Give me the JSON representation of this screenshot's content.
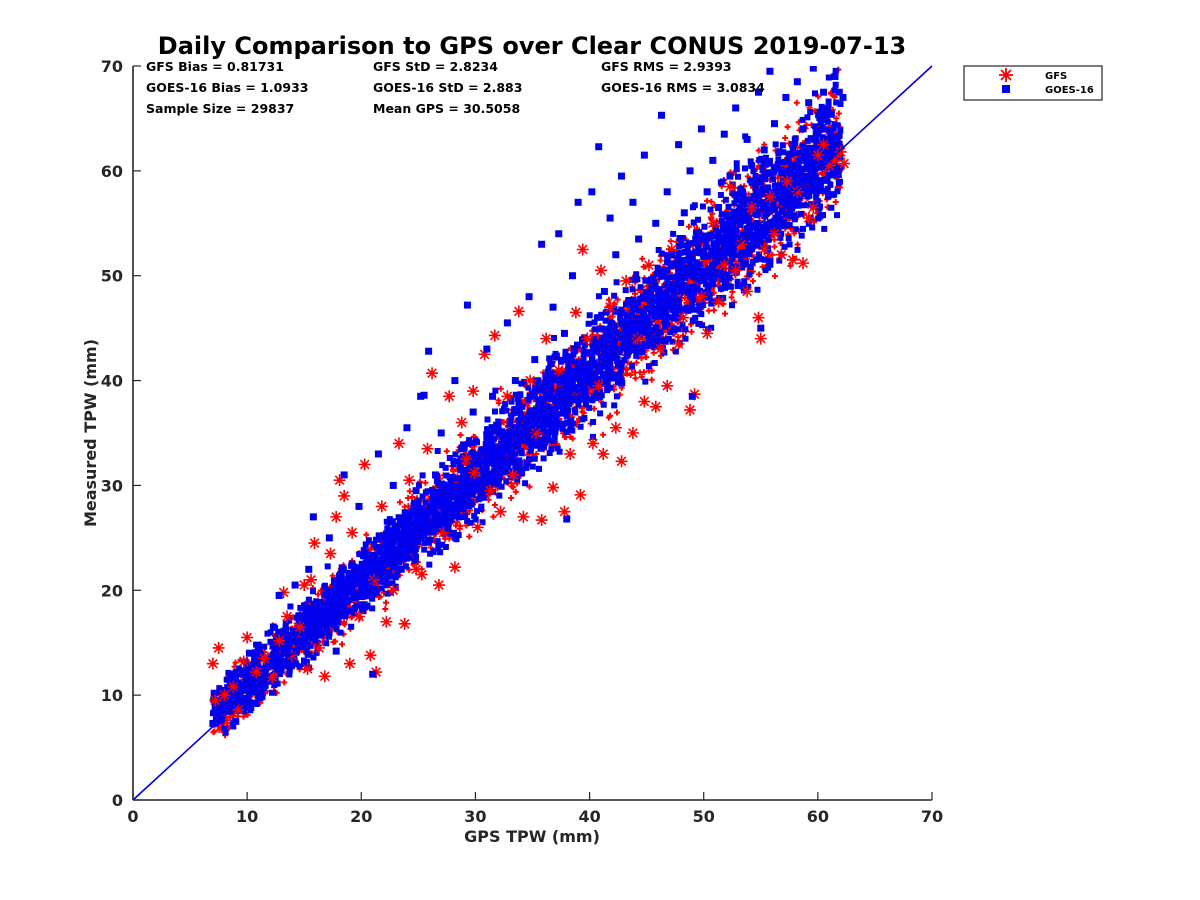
{
  "chart_data": {
    "type": "scatter",
    "title": "Daily Comparison to GPS over Clear CONUS 2019-07-13",
    "xlabel": "GPS TPW (mm)",
    "ylabel": "Measured TPW (mm)",
    "xlim": [
      0,
      70
    ],
    "ylim": [
      0,
      70
    ],
    "xticks": [
      "0",
      "10",
      "20",
      "30",
      "40",
      "50",
      "60",
      "70"
    ],
    "yticks": [
      "0",
      "10",
      "20",
      "30",
      "40",
      "50",
      "60",
      "70"
    ],
    "grid": false,
    "legend_position": "top-right outside",
    "reference_line": {
      "name": "1:1 line",
      "from": [
        0,
        0
      ],
      "to": [
        70,
        70
      ],
      "color": "#0000dd"
    },
    "stats": [
      [
        "GFS Bias = 0.81731",
        "GFS StD = 2.8234",
        "GFS RMS = 2.9393"
      ],
      [
        "GOES-16 Bias = 1.0933",
        "GOES-16 StD = 2.883",
        "GOES-16 RMS = 3.0834"
      ],
      [
        "Sample Size = 29837",
        "Mean GPS = 30.5058"
      ]
    ],
    "series": [
      {
        "name": "GFS",
        "marker": "asterisk",
        "color": "#ff0000",
        "bias": 0.81731,
        "std": 2.8234,
        "rms": 2.9393,
        "points": [
          [
            7.2,
            9.5
          ],
          [
            7.0,
            13.0
          ],
          [
            7.5,
            14.5
          ],
          [
            8.0,
            10.0
          ],
          [
            8.8,
            10.8
          ],
          [
            9.2,
            8.6
          ],
          [
            9.7,
            13.2
          ],
          [
            10.0,
            15.5
          ],
          [
            10.8,
            12.2
          ],
          [
            11.5,
            13.5
          ],
          [
            12.2,
            11.7
          ],
          [
            12.8,
            15.2
          ],
          [
            13.2,
            19.8
          ],
          [
            13.5,
            17.5
          ],
          [
            13.9,
            13.8
          ],
          [
            14.6,
            16.5
          ],
          [
            15.0,
            20.5
          ],
          [
            15.3,
            12.5
          ],
          [
            15.6,
            21.0
          ],
          [
            15.9,
            24.5
          ],
          [
            16.3,
            14.5
          ],
          [
            16.8,
            11.8
          ],
          [
            17.3,
            23.5
          ],
          [
            17.8,
            27.0
          ],
          [
            18.1,
            30.5
          ],
          [
            18.5,
            29.0
          ],
          [
            19.0,
            13.0
          ],
          [
            19.2,
            25.5
          ],
          [
            19.8,
            17.5
          ],
          [
            20.3,
            32.0
          ],
          [
            20.8,
            13.8
          ],
          [
            21.1,
            21.0
          ],
          [
            21.3,
            12.2
          ],
          [
            21.8,
            28.0
          ],
          [
            22.2,
            17.0
          ],
          [
            22.8,
            20.0
          ],
          [
            23.3,
            34.0
          ],
          [
            23.8,
            16.8
          ],
          [
            24.2,
            30.5
          ],
          [
            24.8,
            22.0
          ],
          [
            25.3,
            21.5
          ],
          [
            25.8,
            33.5
          ],
          [
            26.2,
            40.7
          ],
          [
            26.8,
            20.5
          ],
          [
            27.2,
            25.5
          ],
          [
            27.7,
            38.5
          ],
          [
            28.2,
            22.2
          ],
          [
            28.8,
            36.0
          ],
          [
            29.2,
            32.5
          ],
          [
            29.8,
            39.0
          ],
          [
            30.2,
            26.0
          ],
          [
            30.8,
            42.5
          ],
          [
            31.3,
            29.5
          ],
          [
            31.7,
            44.3
          ],
          [
            32.2,
            27.5
          ],
          [
            32.8,
            38.5
          ],
          [
            33.3,
            31.0
          ],
          [
            33.8,
            46.6
          ],
          [
            34.2,
            27.0
          ],
          [
            34.8,
            40.0
          ],
          [
            35.3,
            35.0
          ],
          [
            35.8,
            26.7
          ],
          [
            36.2,
            44.0
          ],
          [
            36.8,
            29.8
          ],
          [
            37.3,
            41.0
          ],
          [
            37.8,
            27.5
          ],
          [
            38.3,
            33.0
          ],
          [
            38.8,
            46.5
          ],
          [
            39.2,
            29.1
          ],
          [
            39.8,
            44.0
          ],
          [
            40.3,
            34.0
          ],
          [
            40.8,
            39.5
          ],
          [
            41.2,
            33.0
          ],
          [
            41.8,
            47.0
          ],
          [
            42.3,
            35.5
          ],
          [
            42.8,
            32.3
          ],
          [
            43.2,
            49.5
          ],
          [
            43.8,
            35.0
          ],
          [
            44.2,
            44.0
          ],
          [
            44.8,
            38.0
          ],
          [
            45.2,
            51.0
          ],
          [
            45.8,
            37.5
          ],
          [
            46.2,
            43.0
          ],
          [
            46.8,
            39.5
          ],
          [
            47.2,
            52.5
          ],
          [
            47.8,
            43.5
          ],
          [
            48.2,
            46.0
          ],
          [
            48.8,
            37.2
          ],
          [
            49.2,
            38.7
          ],
          [
            49.8,
            48.0
          ],
          [
            50.3,
            44.5
          ],
          [
            50.8,
            55.0
          ],
          [
            51.3,
            47.5
          ],
          [
            51.8,
            51.0
          ],
          [
            52.3,
            58.5
          ],
          [
            52.8,
            50.5
          ],
          [
            53.3,
            53.0
          ],
          [
            53.8,
            48.5
          ],
          [
            54.2,
            56.5
          ],
          [
            54.8,
            46.0
          ],
          [
            55.0,
            44.0
          ],
          [
            55.3,
            52.5
          ],
          [
            55.8,
            57.5
          ],
          [
            56.2,
            54.0
          ],
          [
            56.8,
            52.0
          ],
          [
            57.3,
            59.0
          ],
          [
            57.8,
            51.5
          ],
          [
            58.2,
            58.0
          ],
          [
            58.7,
            51.2
          ],
          [
            59.2,
            55.5
          ],
          [
            59.6,
            56.5
          ],
          [
            60.0,
            61.5
          ],
          [
            60.5,
            62.5
          ],
          [
            61.0,
            60.5
          ],
          [
            61.5,
            61.0
          ],
          [
            62.0,
            61.8
          ],
          [
            62.3,
            60.7
          ],
          [
            39.4,
            52.5
          ],
          [
            41.0,
            50.5
          ],
          [
            29.9,
            31.2
          ]
        ]
      },
      {
        "name": "GOES-16",
        "marker": "square",
        "color": "#0000ee",
        "bias": 1.0933,
        "std": 2.883,
        "rms": 3.0834,
        "points": [
          [
            7.0,
            7.3
          ],
          [
            7.5,
            8.2
          ],
          [
            8.2,
            9.0
          ],
          [
            9.0,
            7.5
          ],
          [
            9.5,
            11.0
          ],
          [
            10.2,
            14.0
          ],
          [
            10.8,
            9.2
          ],
          [
            11.5,
            12.5
          ],
          [
            12.3,
            16.5
          ],
          [
            12.8,
            19.5
          ],
          [
            13.5,
            14.0
          ],
          [
            14.2,
            20.5
          ],
          [
            14.8,
            15.2
          ],
          [
            15.4,
            22.0
          ],
          [
            15.8,
            27.0
          ],
          [
            16.5,
            18.0
          ],
          [
            17.2,
            25.0
          ],
          [
            17.8,
            14.2
          ],
          [
            18.5,
            31.0
          ],
          [
            19.2,
            22.5
          ],
          [
            19.8,
            28.0
          ],
          [
            20.5,
            18.5
          ],
          [
            21.0,
            12.0
          ],
          [
            21.5,
            33.0
          ],
          [
            22.2,
            25.0
          ],
          [
            22.8,
            30.0
          ],
          [
            23.5,
            22.0
          ],
          [
            24.0,
            35.5
          ],
          [
            24.8,
            29.5
          ],
          [
            25.2,
            38.5
          ],
          [
            25.9,
            42.8
          ],
          [
            26.5,
            31.0
          ],
          [
            27.0,
            35.0
          ],
          [
            27.6,
            26.0
          ],
          [
            28.2,
            40.0
          ],
          [
            28.8,
            33.5
          ],
          [
            29.3,
            47.2
          ],
          [
            29.8,
            37.0
          ],
          [
            30.5,
            29.0
          ],
          [
            31.0,
            43.0
          ],
          [
            31.5,
            38.5
          ],
          [
            32.2,
            35.0
          ],
          [
            32.8,
            45.5
          ],
          [
            33.5,
            40.0
          ],
          [
            34.0,
            31.5
          ],
          [
            34.7,
            48.0
          ],
          [
            35.2,
            42.0
          ],
          [
            35.8,
            53.0
          ],
          [
            36.2,
            37.0
          ],
          [
            36.8,
            47.0
          ],
          [
            37.3,
            54.0
          ],
          [
            37.8,
            44.5
          ],
          [
            38.5,
            50.0
          ],
          [
            39.0,
            57.0
          ],
          [
            39.5,
            41.0
          ],
          [
            40.2,
            58.0
          ],
          [
            40.8,
            62.3
          ],
          [
            41.3,
            48.5
          ],
          [
            41.8,
            55.5
          ],
          [
            42.3,
            52.0
          ],
          [
            42.8,
            59.5
          ],
          [
            43.3,
            46.0
          ],
          [
            43.8,
            57.0
          ],
          [
            44.3,
            53.5
          ],
          [
            44.8,
            61.5
          ],
          [
            45.3,
            49.5
          ],
          [
            45.8,
            55.0
          ],
          [
            46.3,
            65.3
          ],
          [
            46.8,
            58.0
          ],
          [
            47.2,
            52.0
          ],
          [
            47.8,
            62.5
          ],
          [
            48.3,
            56.0
          ],
          [
            48.8,
            60.0
          ],
          [
            49.3,
            53.5
          ],
          [
            49.8,
            64.0
          ],
          [
            50.3,
            58.0
          ],
          [
            50.8,
            61.0
          ],
          [
            51.3,
            56.5
          ],
          [
            51.8,
            63.5
          ],
          [
            52.3,
            59.5
          ],
          [
            52.8,
            66.0
          ],
          [
            53.3,
            58.0
          ],
          [
            53.8,
            63.0
          ],
          [
            54.2,
            60.5
          ],
          [
            54.8,
            67.5
          ],
          [
            55.3,
            62.0
          ],
          [
            55.8,
            69.5
          ],
          [
            56.2,
            64.5
          ],
          [
            56.8,
            60.0
          ],
          [
            57.2,
            67.0
          ],
          [
            57.8,
            62.5
          ],
          [
            58.2,
            68.5
          ],
          [
            58.7,
            64.0
          ],
          [
            59.2,
            66.5
          ],
          [
            59.6,
            69.8
          ],
          [
            60.0,
            63.5
          ],
          [
            60.5,
            67.5
          ],
          [
            61.0,
            61.5
          ],
          [
            61.5,
            69.0
          ],
          [
            62.2,
            67.0
          ],
          [
            55.0,
            45.0
          ],
          [
            49.0,
            38.5
          ],
          [
            38.0,
            26.8
          ],
          [
            25.5,
            38.6
          ]
        ]
      }
    ]
  },
  "legend": {
    "items": [
      {
        "label": "GFS",
        "marker": "asterisk",
        "color": "#ff0000"
      },
      {
        "label": "GOES-16",
        "marker": "square",
        "color": "#0000ee"
      }
    ]
  }
}
